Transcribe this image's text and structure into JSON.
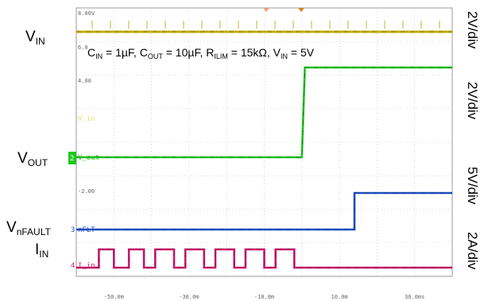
{
  "chart_data": {
    "type": "line",
    "conditions": {
      "cin_main": "C",
      "cin_sub": "IN",
      "cin_val": " = 1µF, ",
      "cout_main": "C",
      "cout_sub": "OUT",
      "cout_val": " = 10µF, ",
      "rilim_main": "R",
      "rilim_sub": "ILIM",
      "rilim_val": " = 15kΩ, ",
      "vin_main": "V",
      "vin_sub": "IN",
      "vin_val": " = 5V"
    },
    "screen_annotations": {
      "top_level": "8.00V",
      "vin_level": "6.0",
      "vout_level": "4.00",
      "nflt_level": "-2.00"
    },
    "x_ticks": [
      -50,
      -30,
      -10,
      10,
      30
    ],
    "x_tick_labels": [
      "-50.0m",
      "-30.0m",
      "-10.0m",
      "10.0m",
      "30.0ms"
    ],
    "xlim": [
      -60,
      40
    ],
    "signals": [
      {
        "id": "vin",
        "label_main": "V",
        "label_sub": "IN",
        "scale": "2V/div",
        "channel_tag": "",
        "color": "#c8b400",
        "points": [
          [
            -60,
            1
          ],
          [
            40,
            1
          ]
        ]
      },
      {
        "id": "vout",
        "label_main": "V",
        "label_sub": "OUT",
        "scale": "2V/div",
        "channel_tag": "V_out",
        "channel_num": "2",
        "color": "#1ec81e",
        "points": [
          [
            -60,
            0
          ],
          [
            0,
            0
          ],
          [
            0.8,
            1
          ],
          [
            40,
            1
          ]
        ]
      },
      {
        "id": "nflt",
        "label_main": "V",
        "label_sub": "nFAULT",
        "scale": "5V/div",
        "channel_tag": "nFLT",
        "channel_num": "3",
        "color": "#1e50c8",
        "points": [
          [
            -60,
            0
          ],
          [
            14,
            0
          ],
          [
            14,
            1
          ],
          [
            40,
            1
          ]
        ]
      },
      {
        "id": "iin",
        "label_main": "I",
        "label_sub": "IN",
        "scale": "2A/div",
        "channel_tag": "I_in",
        "channel_num": "4",
        "color": "#d0186e",
        "pulses": [
          [
            -54,
            -50
          ],
          [
            -46,
            -42
          ],
          [
            -39,
            -34
          ],
          [
            -31,
            -26
          ],
          [
            -23,
            -18
          ],
          [
            -15,
            -10
          ],
          [
            -7,
            -2
          ]
        ]
      }
    ],
    "vin_channel_tag": "V_in",
    "vin_channel_tag_color": "#e8e070"
  }
}
